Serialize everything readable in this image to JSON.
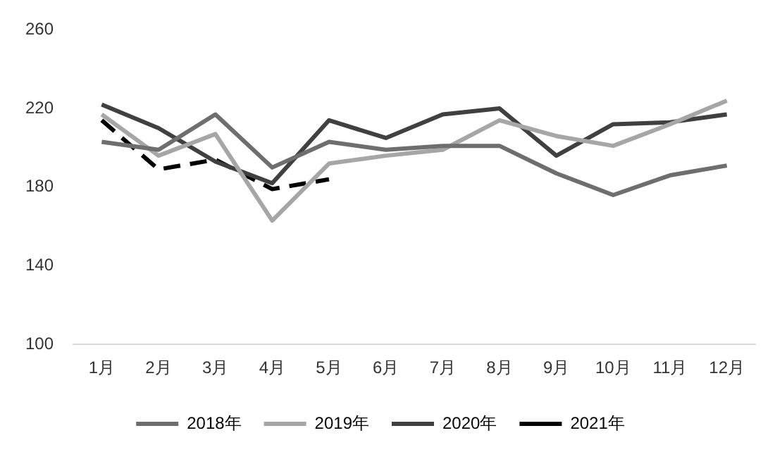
{
  "chart_data": {
    "type": "line",
    "categories": [
      "1月",
      "2月",
      "3月",
      "4月",
      "5月",
      "6月",
      "7月",
      "8月",
      "9月",
      "10月",
      "11月",
      "12月"
    ],
    "series": [
      {
        "name": "2018年",
        "color": "#6e6e6e",
        "values": [
          203,
          199,
          217,
          190,
          203,
          199,
          201,
          201,
          187,
          176,
          186,
          191
        ]
      },
      {
        "name": "2019年",
        "color": "#a6a6a6",
        "values": [
          217,
          196,
          207,
          163,
          192,
          196,
          199,
          214,
          206,
          201,
          212,
          224
        ]
      },
      {
        "name": "2020年",
        "color": "#404040",
        "values": [
          222,
          210,
          193,
          182,
          214,
          205,
          217,
          220,
          196,
          212,
          213,
          217
        ]
      },
      {
        "name": "2021年",
        "color": "#000000",
        "line_style": "dashed",
        "values": [
          214,
          189,
          194,
          179,
          184,
          null,
          null,
          null,
          null,
          null,
          null,
          null
        ]
      }
    ],
    "ylim": [
      100,
      260
    ],
    "yticks": [
      100,
      140,
      180,
      220,
      260
    ],
    "grid": false,
    "legend": "bottom",
    "marker": "none"
  }
}
